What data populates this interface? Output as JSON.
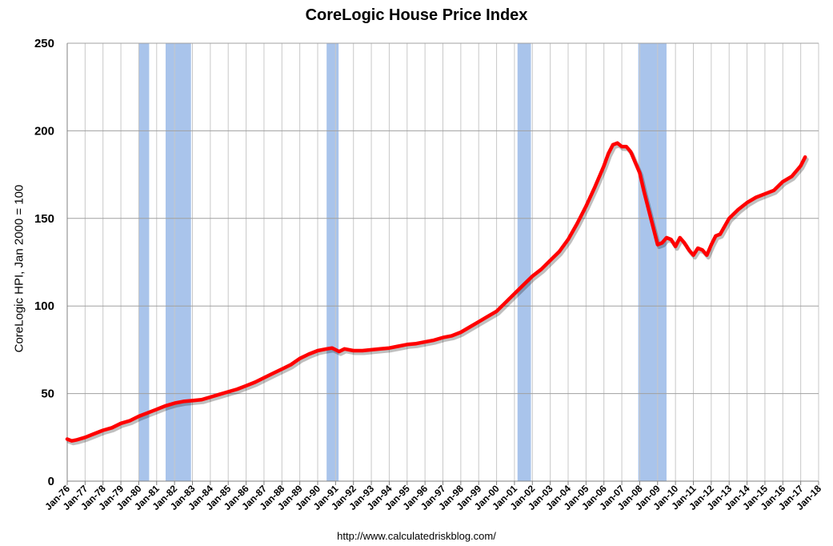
{
  "chart_data": {
    "type": "line",
    "title": "CoreLogic House Price Index",
    "ylabel": "CoreLogic HPI, Jan 2000 = 100",
    "xlabel": "",
    "source": "http://www.calculatedriskblog.com/",
    "ylim": [
      0,
      250
    ],
    "y_ticks": [
      0,
      50,
      100,
      150,
      200,
      250
    ],
    "xlim": [
      1976,
      2018
    ],
    "x_tick_labels": [
      "Jan-76",
      "Jan-77",
      "Jan-78",
      "Jan-79",
      "Jan-80",
      "Jan-81",
      "Jan-82",
      "Jan-83",
      "Jan-84",
      "Jan-85",
      "Jan-86",
      "Jan-87",
      "Jan-88",
      "Jan-89",
      "Jan-90",
      "Jan-91",
      "Jan-92",
      "Jan-93",
      "Jan-94",
      "Jan-95",
      "Jan-96",
      "Jan-97",
      "Jan-98",
      "Jan-99",
      "Jan-00",
      "Jan-01",
      "Jan-02",
      "Jan-03",
      "Jan-04",
      "Jan-05",
      "Jan-06",
      "Jan-07",
      "Jan-08",
      "Jan-09",
      "Jan-10",
      "Jan-11",
      "Jan-12",
      "Jan-13",
      "Jan-14",
      "Jan-15",
      "Jan-16",
      "Jan-17",
      "Jan-18"
    ],
    "grid": true,
    "colors": {
      "line": "#ff0000",
      "recession": "#a9c4eb",
      "grid": "#a0a0a0"
    },
    "recessions": [
      {
        "start": 1980.0,
        "end": 1980.58
      },
      {
        "start": 1981.5,
        "end": 1982.92
      },
      {
        "start": 1990.5,
        "end": 1991.17
      },
      {
        "start": 2001.17,
        "end": 2001.92
      },
      {
        "start": 2007.92,
        "end": 2009.5
      }
    ],
    "series": [
      {
        "name": "CoreLogic HPI",
        "x": [
          1976.0,
          1976.25,
          1976.5,
          1977.0,
          1977.5,
          1978.0,
          1978.5,
          1979.0,
          1979.5,
          1980.0,
          1980.5,
          1981.0,
          1981.5,
          1982.0,
          1982.5,
          1983.0,
          1983.5,
          1984.0,
          1984.5,
          1985.0,
          1985.5,
          1986.0,
          1986.5,
          1987.0,
          1987.5,
          1988.0,
          1988.5,
          1989.0,
          1989.5,
          1990.0,
          1990.5,
          1990.8,
          1991.0,
          1991.2,
          1991.5,
          1992.0,
          1992.5,
          1993.0,
          1993.5,
          1994.0,
          1994.5,
          1995.0,
          1995.5,
          1996.0,
          1996.5,
          1997.0,
          1997.5,
          1998.0,
          1998.5,
          1999.0,
          1999.5,
          2000.0,
          2000.5,
          2001.0,
          2001.5,
          2002.0,
          2002.5,
          2003.0,
          2003.5,
          2004.0,
          2004.5,
          2005.0,
          2005.5,
          2006.0,
          2006.25,
          2006.5,
          2006.75,
          2007.0,
          2007.25,
          2007.5,
          2007.75,
          2008.0,
          2008.25,
          2008.5,
          2008.75,
          2009.0,
          2009.25,
          2009.5,
          2009.75,
          2010.0,
          2010.25,
          2010.5,
          2010.75,
          2011.0,
          2011.25,
          2011.5,
          2011.75,
          2012.0,
          2012.25,
          2012.5,
          2013.0,
          2013.5,
          2014.0,
          2014.5,
          2015.0,
          2015.5,
          2016.0,
          2016.5,
          2017.0,
          2017.25
        ],
        "values": [
          24,
          23,
          23.5,
          25,
          27,
          29,
          30.5,
          33,
          34.5,
          37,
          39,
          41,
          43,
          44.5,
          45.5,
          46,
          46.5,
          48,
          49.5,
          51,
          52.5,
          54.5,
          56.5,
          59,
          61.5,
          64,
          66.5,
          70,
          72.5,
          74.5,
          75.5,
          76,
          75,
          74,
          75.5,
          74.5,
          74.5,
          75,
          75.5,
          76,
          77,
          78,
          78.5,
          79.5,
          80.5,
          82,
          83,
          85,
          88,
          91,
          94,
          97,
          102,
          107,
          112,
          117,
          121,
          126,
          131,
          138,
          147,
          157,
          168,
          180,
          187,
          192,
          193,
          191,
          191,
          188,
          182,
          176,
          165,
          155,
          145,
          135,
          136,
          139,
          138,
          134,
          139,
          136,
          132,
          129,
          133,
          132,
          129,
          135,
          140,
          141,
          150,
          155,
          159,
          162,
          164,
          166,
          171,
          174,
          180,
          185
        ]
      }
    ]
  }
}
